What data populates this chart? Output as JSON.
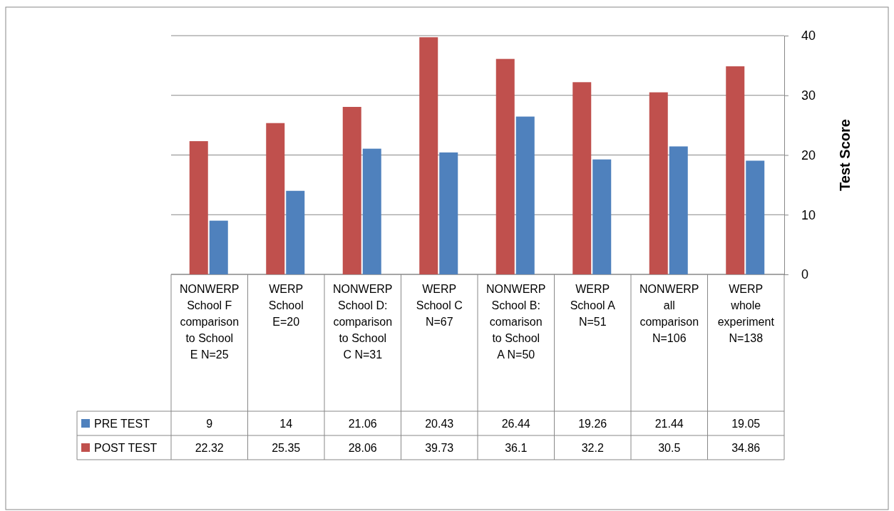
{
  "chart_data": {
    "type": "bar",
    "ylabel": "Test Score",
    "categories": [
      "NONWERP School F comparison to School E N=25",
      "WERP School E=20",
      "NONWERP School D: comparison to School C N=31",
      "WERP School C N=67",
      "NONWERP School B: comarison to School A N=50",
      "WERP School A N=51",
      "NONWERP all comparison N=106",
      "WERP whole experiment N=138"
    ],
    "series": [
      {
        "name": "PRE TEST",
        "color": "#4f81bd",
        "values": [
          9,
          14,
          21.06,
          20.43,
          26.44,
          19.26,
          21.44,
          19.05
        ]
      },
      {
        "name": "POST TEST",
        "color": "#c0504d",
        "values": [
          22.32,
          25.35,
          28.06,
          39.73,
          36.1,
          32.2,
          30.5,
          34.86
        ]
      }
    ],
    "ylim": [
      0,
      40
    ],
    "yticks": [
      0,
      10,
      20,
      30,
      40
    ],
    "grid": "y",
    "data_labels": true,
    "legend": "bottom left"
  }
}
